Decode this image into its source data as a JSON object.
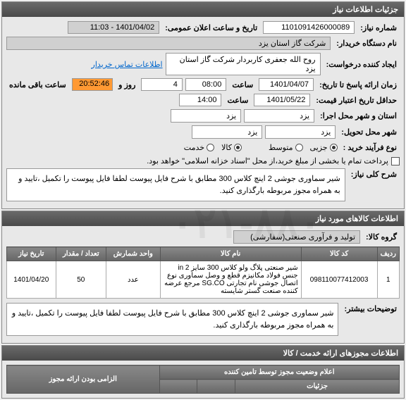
{
  "header": {
    "title": "جزئیات اطلاعات نیاز"
  },
  "info": {
    "need_no_label": "شماره نیاز:",
    "need_no": "1101091426000089",
    "pub_datetime_label": "تاریخ و ساعت اعلان عمومی:",
    "pub_datetime": "1401/04/02 - 11:03",
    "buyer_label": "نام دستگاه خریدار:",
    "buyer": "شرکت گاز استان یزد",
    "requester_label": "ایجاد کننده درخواست:",
    "requester": "روح الله جعفری کاربردار شرکت گاز استان یزد",
    "contact_link": "اطلاعات تماس خریدار",
    "deadline_label": "حداقل تاریخ اعتبار قیمت:",
    "deadline_date": "1401/05/22",
    "deadline_hour_label": "ساعت",
    "deadline_hour": "14:00",
    "response_label": "زمان ارائه پاسخ تا تاریخ:",
    "response_date": "1401/04/07",
    "response_hour_label": "ساعت",
    "response_hour": "08:00",
    "days_label": "روز و",
    "days": "4",
    "remain_label": "ساعت باقی مانده",
    "remain": "20:52:46",
    "exec_city_label": "استان و شهر محل اجرا:",
    "exec_city1": "یزد",
    "exec_city2": "یزد",
    "deliv_city_label": "شهر محل تحویل:",
    "deliv_city1": "یزد",
    "deliv_city2": "یزد",
    "buy_type_label": "نوع فرآیند خرید :",
    "radio_partial": "جزیی",
    "radio_mid": "متوسط",
    "radio_goods": "کالا",
    "radio_service": "خدمت",
    "pay_note": "پرداخت تمام یا بخشی از مبلغ خرید،از محل \"اسناد خزانه اسلامی\" خواهد بود.",
    "desc_label": "شرح کلی نیاز:",
    "desc_text": "شیر سماوری جوشی  2 اینچ کلاس 300 مطابق با شرح فایل پیوست لطفا  فایل پیوست را تکمیل ،تایید و به همراه مجوز مربوطه بارگذاری کنید."
  },
  "goods": {
    "header": "اطلاعات کالاهای مورد نیاز",
    "group_label": "گروه کالا:",
    "group_value": "تولید و فرآوری صنعتی(سفارشی)",
    "columns": [
      "ردیف",
      "کد کالا",
      "نام کالا",
      "واحد شمارش",
      "تعداد / مقدار",
      "تاریخ نیاز"
    ],
    "rows": [
      {
        "idx": "1",
        "code": "098110077412003",
        "name": "شیر صنعتی پلاگ ولو کلاس 300 سایز in 2 جنس فولاد مکانیزم قطع و وصل سماوری نوع اتصال جوشی نام تجارتی SG.CO مرجع عرضه کننده صنعت گستر شایسته",
        "unit": "عدد",
        "qty": "50",
        "date": "1401/04/20"
      }
    ],
    "more_label": "توضیحات بیشتر:",
    "more_text": "شیر سماوری جوشی  2 اینچ کلاس 300 مطابق با شرح فایل پیوست لطفا  فایل پیوست را تکمیل ،تایید و به همراه مجوز مربوطه بارگذاری کنید."
  },
  "permits": {
    "header": "اطلاعات مجوزهای ارائه خدمت / کالا",
    "sub_header": "اعلام وضعیت مجوز توسط تامین کننده",
    "col1": "الزامی بودن ارائه مجوز",
    "details": "جزئیات"
  },
  "watermark": "۰۲۱-۸۸۰"
}
